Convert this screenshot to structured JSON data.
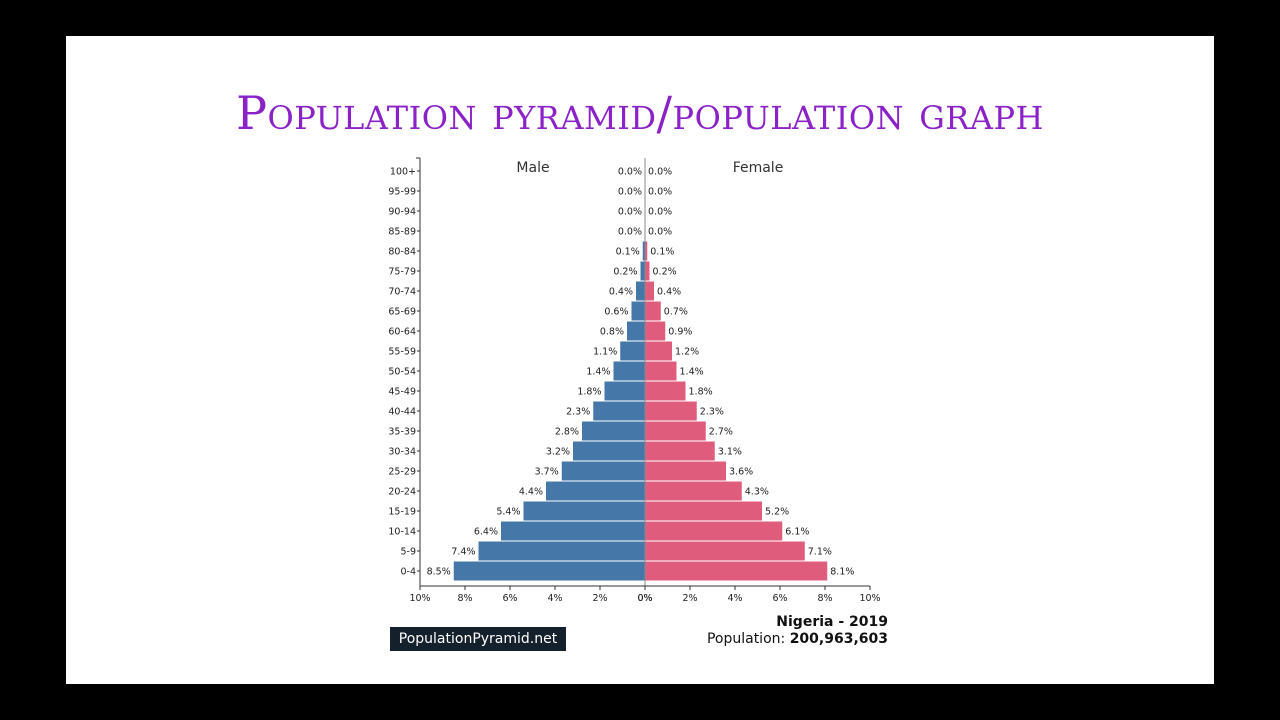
{
  "slide": {
    "title": "Population pyramid/population graph"
  },
  "footer": {
    "brand": "PopulationPyramid.net",
    "country_year": "Nigeria - 2019",
    "population_label": "Population:",
    "population_value": "200,963,603"
  },
  "chart_data": {
    "type": "bar",
    "orientation": "horizontal",
    "subtype": "population-pyramid",
    "categories": [
      "0-4",
      "5-9",
      "10-14",
      "15-19",
      "20-24",
      "25-29",
      "30-34",
      "35-39",
      "40-44",
      "45-49",
      "50-54",
      "55-59",
      "60-64",
      "65-69",
      "70-74",
      "75-79",
      "80-84",
      "85-89",
      "90-94",
      "95-99",
      "100+"
    ],
    "series": [
      {
        "name": "Male",
        "color": "#4577a8",
        "values": [
          8.5,
          7.4,
          6.4,
          5.4,
          4.4,
          3.7,
          3.2,
          2.8,
          2.3,
          1.8,
          1.4,
          1.1,
          0.8,
          0.6,
          0.4,
          0.2,
          0.1,
          0.0,
          0.0,
          0.0,
          0.0
        ]
      },
      {
        "name": "Female",
        "color": "#e05c7c",
        "values": [
          8.1,
          7.1,
          6.1,
          5.2,
          4.3,
          3.6,
          3.1,
          2.7,
          2.3,
          1.8,
          1.4,
          1.2,
          0.9,
          0.7,
          0.4,
          0.2,
          0.1,
          0.0,
          0.0,
          0.0,
          0.0
        ]
      }
    ],
    "xlim": [
      0,
      10
    ],
    "xticks": [
      "10%",
      "8%",
      "6%",
      "4%",
      "2%",
      "0%",
      "0%",
      "2%",
      "4%",
      "6%",
      "8%",
      "10%"
    ],
    "value_format": "%"
  }
}
